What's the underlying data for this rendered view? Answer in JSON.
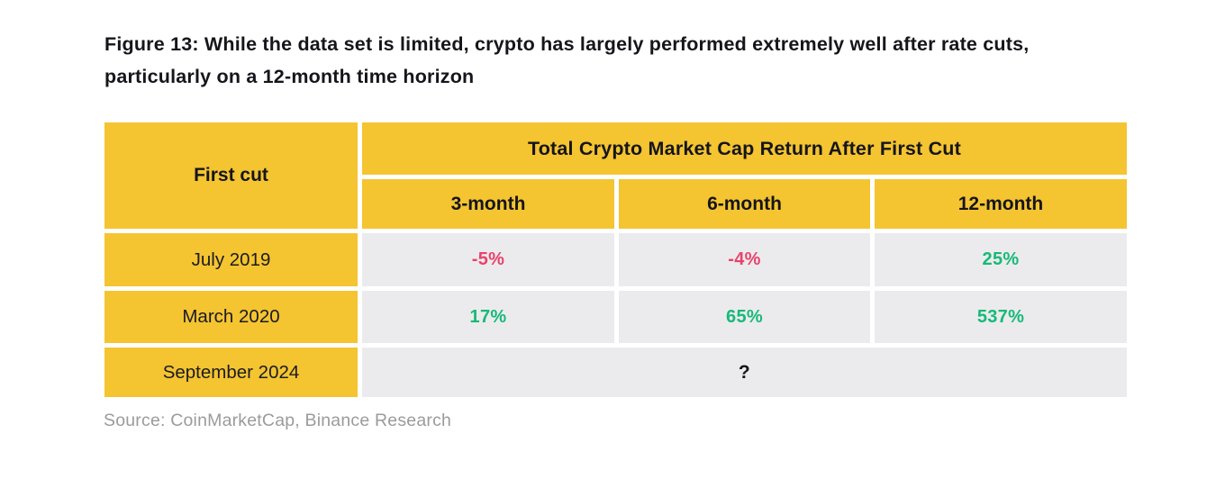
{
  "figure": {
    "title": "Figure 13: While the data set is limited, crypto has largely performed extremely well after rate cuts, particularly on a 12-month time horizon",
    "source": "Source: CoinMarketCap, Binance Research"
  },
  "table": {
    "corner_header": "First cut",
    "group_header": "Total Crypto Market Cap Return After First Cut",
    "column_headers": [
      "3-month",
      "6-month",
      "12-month"
    ],
    "rows": [
      {
        "label": "July 2019",
        "values": [
          "-5%",
          "-4%",
          "25%"
        ],
        "value_sentiment": [
          "negative",
          "negative",
          "positive"
        ]
      },
      {
        "label": "March 2020",
        "values": [
          "17%",
          "65%",
          "537%"
        ],
        "value_sentiment": [
          "positive",
          "positive",
          "positive"
        ]
      },
      {
        "label": "September 2024",
        "values": [
          "?"
        ],
        "merged": true
      }
    ]
  },
  "colors": {
    "accent_yellow": "#F4C431",
    "cell_gray": "#EBEBED",
    "negative": "#E8436B",
    "positive": "#17B978",
    "title_text": "#15151B",
    "source_text": "#9B9B9E"
  },
  "chart_data": {
    "type": "table",
    "title": "Total Crypto Market Cap Return After First Cut",
    "row_header": "First cut",
    "columns": [
      "3-month",
      "6-month",
      "12-month"
    ],
    "rows": [
      {
        "first_cut": "July 2019",
        "returns": {
          "3_month": "-5%",
          "6_month": "-4%",
          "12_month": "25%"
        }
      },
      {
        "first_cut": "March 2020",
        "returns": {
          "3_month": "17%",
          "6_month": "65%",
          "12_month": "537%"
        }
      },
      {
        "first_cut": "September 2024",
        "returns": {
          "3_month": "?",
          "6_month": "?",
          "12_month": "?"
        }
      }
    ]
  }
}
